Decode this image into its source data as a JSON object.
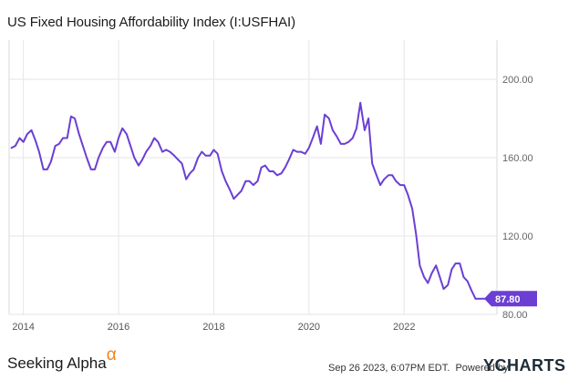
{
  "header": {
    "title": "US Fixed Housing Affordability Index (I:USFHAI)"
  },
  "footer": {
    "brand": "Seeking Alpha",
    "brand_mark": "α",
    "timestamp": "Sep 26 2023, 6:07PM EDT.",
    "powered_by": "Powered by",
    "provider_logo": "YCHARTS"
  },
  "chart_data": {
    "type": "line",
    "title": "US Fixed Housing Affordability Index (I:USFHAI)",
    "series": [
      {
        "name": "US Fixed Housing Affordability Index",
        "color": "#6b3fd4",
        "x": [
          2013.75,
          2013.83,
          2013.92,
          2014.0,
          2014.08,
          2014.17,
          2014.25,
          2014.33,
          2014.42,
          2014.5,
          2014.58,
          2014.67,
          2014.75,
          2014.83,
          2014.92,
          2015.0,
          2015.08,
          2015.17,
          2015.25,
          2015.33,
          2015.42,
          2015.5,
          2015.58,
          2015.67,
          2015.75,
          2015.83,
          2015.92,
          2016.0,
          2016.08,
          2016.17,
          2016.25,
          2016.33,
          2016.42,
          2016.5,
          2016.58,
          2016.67,
          2016.75,
          2016.83,
          2016.92,
          2017.0,
          2017.08,
          2017.17,
          2017.25,
          2017.33,
          2017.42,
          2017.5,
          2017.58,
          2017.67,
          2017.75,
          2017.83,
          2017.92,
          2018.0,
          2018.08,
          2018.17,
          2018.25,
          2018.33,
          2018.42,
          2018.5,
          2018.58,
          2018.67,
          2018.75,
          2018.83,
          2018.92,
          2019.0,
          2019.08,
          2019.17,
          2019.25,
          2019.33,
          2019.42,
          2019.5,
          2019.58,
          2019.67,
          2019.75,
          2019.83,
          2019.92,
          2020.0,
          2020.08,
          2020.17,
          2020.25,
          2020.33,
          2020.42,
          2020.5,
          2020.58,
          2020.67,
          2020.75,
          2020.83,
          2020.92,
          2021.0,
          2021.08,
          2021.17,
          2021.25,
          2021.33,
          2021.42,
          2021.5,
          2021.58,
          2021.67,
          2021.75,
          2021.83,
          2021.92,
          2022.0,
          2022.08,
          2022.17,
          2022.25,
          2022.33,
          2022.42,
          2022.5,
          2022.58,
          2022.67,
          2022.75,
          2022.83,
          2022.92,
          2023.0,
          2023.08,
          2023.17,
          2023.25,
          2023.33,
          2023.42,
          2023.5
        ],
        "values": [
          165,
          166,
          170,
          168,
          172,
          174,
          169,
          163,
          154,
          154,
          158,
          166,
          167,
          170,
          170,
          181,
          180,
          172,
          166,
          160,
          154,
          154,
          160,
          165,
          168,
          168,
          163,
          170,
          175,
          172,
          166,
          160,
          156,
          159,
          163,
          166,
          170,
          168,
          163,
          164,
          163,
          161,
          159,
          157,
          149,
          152,
          154,
          160,
          163,
          161,
          161,
          164,
          162,
          153,
          148,
          144,
          139,
          141,
          143,
          148,
          148,
          146,
          148,
          155,
          156,
          153,
          153,
          151,
          152,
          155,
          159,
          164,
          163,
          163,
          162,
          165,
          170,
          176,
          167,
          182,
          180,
          174,
          171,
          167,
          167,
          168,
          170,
          175,
          188,
          174,
          180,
          157,
          151,
          146,
          149,
          151,
          151,
          148,
          146,
          146,
          141,
          134,
          121,
          105,
          99,
          96,
          101,
          105,
          99,
          93,
          95,
          103,
          106,
          106,
          99,
          97,
          92,
          88
        ]
      }
    ],
    "last_value_label": "87.80",
    "xlim": [
      2013.7,
      2023.95
    ],
    "ylim": [
      80,
      220
    ],
    "x_ticks": [
      2014,
      2016,
      2018,
      2020,
      2022
    ],
    "x_tick_labels": [
      "2014",
      "2016",
      "2018",
      "2020",
      "2022"
    ],
    "y_ticks": [
      80,
      120,
      160,
      200
    ],
    "y_tick_labels": [
      "80.00",
      "120.00",
      "160.00",
      "200.00"
    ],
    "grid": true,
    "xlabel": "",
    "ylabel": ""
  }
}
